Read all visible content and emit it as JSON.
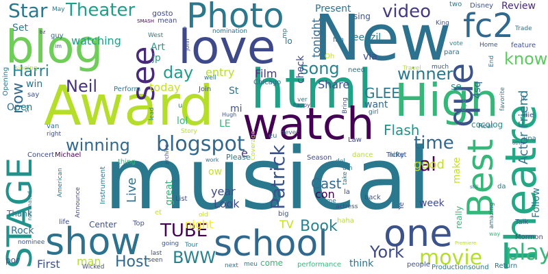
{
  "words": [
    {
      "text": "musical",
      "color": "#2a788e"
    },
    {
      "text": "New",
      "color": "#2c718e"
    },
    {
      "text": "Award",
      "color": "#b5de2b"
    },
    {
      "text": "html",
      "color": "#1fa187"
    },
    {
      "text": "Theatre",
      "color": "#22a884"
    },
    {
      "text": "High",
      "color": "#35b779"
    },
    {
      "text": "love",
      "color": "#3e4989"
    },
    {
      "text": "blog",
      "color": "#6ece58"
    },
    {
      "text": "watch",
      "color": "#440154"
    },
    {
      "text": "school",
      "color": "#31688e"
    },
    {
      "text": "show",
      "color": "#2c728e"
    },
    {
      "text": "Photo",
      "color": "#2a788e"
    },
    {
      "text": "STAGE",
      "color": "#21918c"
    },
    {
      "text": "Best",
      "color": "#35b779"
    },
    {
      "text": "one",
      "color": "#3b528b"
    },
    {
      "text": "que",
      "color": "#3b528b"
    },
    {
      "text": "see",
      "color": "#482878"
    },
    {
      "text": "fc2",
      "color": "#31688e"
    },
    {
      "text": "play",
      "color": "#35b779"
    },
    {
      "text": "blogspot",
      "color": "#31688e"
    },
    {
      "text": "winning",
      "color": "#31688e"
    },
    {
      "text": "Patrick",
      "color": "#3b528b"
    },
    {
      "text": "movie",
      "color": "#b5de2b"
    },
    {
      "text": "Theater",
      "color": "#1f9e89"
    },
    {
      "text": "Star",
      "color": "#2a788e"
    },
    {
      "text": "video",
      "color": "#443983"
    },
    {
      "text": "TUBE",
      "color": "#440154"
    },
    {
      "text": "BWW",
      "color": "#26828e"
    },
    {
      "text": "York",
      "color": "#3e4989"
    },
    {
      "text": "winner",
      "color": "#2a788e"
    },
    {
      "text": "song",
      "color": "#26828e"
    },
    {
      "text": "know",
      "color": "#5ec962"
    },
    {
      "text": "day",
      "color": "#1f9e89"
    },
    {
      "text": "time",
      "color": "#31688e"
    },
    {
      "text": "Neil",
      "color": "#46327e"
    },
    {
      "text": "Host",
      "color": "#31688e"
    },
    {
      "text": "Harri",
      "color": "#26828e"
    },
    {
      "text": "Book",
      "color": "#26828e"
    },
    {
      "text": "Cast",
      "color": "#31688e"
    },
    {
      "text": "now",
      "color": "#31688e"
    },
    {
      "text": "al",
      "color": "#440154"
    },
    {
      "text": "Actor Friend",
      "color": "#2a788e"
    },
    {
      "text": "Flash",
      "color": "#21918c"
    },
    {
      "text": "GLEE",
      "color": "#2a788e"
    },
    {
      "text": "Live",
      "color": "#2c728e"
    },
    {
      "text": "good",
      "color": "#c8e020"
    },
    {
      "text": "First",
      "color": "#3b528b"
    },
    {
      "text": "man",
      "color": "#b5de2b"
    },
    {
      "text": "tonight",
      "color": "#31688e"
    },
    {
      "text": "night",
      "color": "#fde725"
    },
    {
      "text": "watching",
      "color": "#1f9e89"
    },
    {
      "text": "entry",
      "color": "#b5de2b"
    },
    {
      "text": "Film",
      "color": "#443983"
    },
    {
      "text": "Share",
      "color": "#3b528b"
    },
    {
      "text": "year",
      "color": "#3e4989"
    },
    {
      "text": "Look",
      "color": "#3e4989"
    },
    {
      "text": "today",
      "color": "#c8e020"
    },
    {
      "text": "Present",
      "color": "#2c728e"
    },
    {
      "text": "think",
      "color": "#2c728e"
    },
    {
      "text": "lol",
      "color": "#35b779"
    },
    {
      "text": "Open",
      "color": "#2a788e"
    },
    {
      "text": "Art",
      "color": "#1f9e89"
    },
    {
      "text": "jp",
      "color": "#1f9e89"
    },
    {
      "text": "via",
      "color": "#3e4989"
    },
    {
      "text": "4sq",
      "color": "#31688e"
    },
    {
      "text": "Review",
      "color": "#482878"
    },
    {
      "text": "Follow",
      "color": "#2a788e"
    },
    {
      "text": "TV",
      "color": "#c8e020"
    },
    {
      "text": "con",
      "color": "#440154"
    },
    {
      "text": "make",
      "color": "#c8e020"
    },
    {
      "text": "e",
      "color": "#46327e"
    },
    {
      "text": "week",
      "color": "#3e4989"
    },
    {
      "text": "want",
      "color": "#31688e"
    },
    {
      "text": "se",
      "color": "#21918c"
    },
    {
      "text": "LE",
      "color": "#35b779"
    },
    {
      "text": "mi",
      "color": "#3b528b"
    },
    {
      "text": "St",
      "color": "#2c728e"
    },
    {
      "text": "win",
      "color": "#2c728e"
    },
    {
      "text": "really",
      "color": "#35b779"
    },
    {
      "text": "great",
      "color": "#35b779"
    },
    {
      "text": "Set",
      "color": "#2a788e"
    },
    {
      "text": "Rock",
      "color": "#2c728e"
    },
    {
      "text": "Center",
      "color": "#3b528b"
    },
    {
      "text": "come",
      "color": "#35b779"
    },
    {
      "text": "feedzil",
      "color": "#2a788e"
    },
    {
      "text": "sing",
      "color": "#3b528b"
    },
    {
      "text": "Concert",
      "color": "#3e4989"
    },
    {
      "text": "Michael",
      "color": "#440154"
    },
    {
      "text": "Thank",
      "color": "#2a788e"
    },
    {
      "text": "cocolog",
      "color": "#21918c"
    },
    {
      "text": "ow",
      "color": "#c8e020"
    },
    {
      "text": "performance",
      "color": "#35b779"
    },
    {
      "text": "Productionsound",
      "color": "#2a788e"
    },
    {
      "text": "Chicago",
      "color": "#31688e"
    },
    {
      "text": "Join",
      "color": "#3e4989"
    },
    {
      "text": "Perform",
      "color": "#2a788e"
    },
    {
      "text": "Opening",
      "color": "#2c728e"
    },
    {
      "text": "singing",
      "color": "#b5de2b"
    },
    {
      "text": "gosto",
      "color": "#3e4989"
    },
    {
      "text": "mean",
      "color": "#3e4989"
    },
    {
      "text": "SMASH",
      "color": "#440154"
    },
    {
      "text": "West",
      "color": "#2a788e"
    },
    {
      "text": "guy",
      "color": "#31688e"
    },
    {
      "text": "bz",
      "color": "#482878"
    },
    {
      "text": "im",
      "color": "#3e4989"
    },
    {
      "text": "May",
      "color": "#2a788e"
    },
    {
      "text": "nomination",
      "color": "#2c728e"
    },
    {
      "text": "Disney",
      "color": "#3b528b"
    },
    {
      "text": "King",
      "color": "#3b528b"
    },
    {
      "text": "para",
      "color": "#2c728e"
    },
    {
      "text": "two",
      "color": "#2a788e"
    },
    {
      "text": "Trade",
      "color": "#2c728e"
    },
    {
      "text": "feature",
      "color": "#3b528b"
    },
    {
      "text": "Home",
      "color": "#3b528b"
    },
    {
      "text": "vote",
      "color": "#21918c"
    },
    {
      "text": "End",
      "color": "#2c728e"
    },
    {
      "text": "Travel",
      "color": "#b5de2b"
    },
    {
      "text": "much",
      "color": "#3b528b"
    },
    {
      "text": "need",
      "color": "#2c728e"
    },
    {
      "text": "Oh",
      "color": "#c8e020"
    },
    {
      "text": "fan",
      "color": "#2c728e"
    },
    {
      "text": "lo",
      "color": "#2a788e"
    },
    {
      "text": "check",
      "color": "#3e4989"
    },
    {
      "text": "mp",
      "color": "#2c728e"
    },
    {
      "text": "happy",
      "color": "#3e4989"
    },
    {
      "text": "ver",
      "color": "#2a788e"
    },
    {
      "text": "Bring",
      "color": "#3e4989"
    },
    {
      "text": "girl",
      "color": "#31688e"
    },
    {
      "text": "Hugh",
      "color": "#3b528b"
    },
    {
      "text": "eu",
      "color": "#2a788e"
    },
    {
      "text": "never",
      "color": "#31688e"
    },
    {
      "text": "ik",
      "color": "#2c728e"
    },
    {
      "text": "favorite",
      "color": "#2a788e"
    },
    {
      "text": "die",
      "color": "#3e4989"
    },
    {
      "text": "Real",
      "color": "#2c728e"
    },
    {
      "text": "Opera",
      "color": "#35b779"
    },
    {
      "text": "una",
      "color": "#2c728e"
    },
    {
      "text": "other",
      "color": "#3b528b"
    },
    {
      "text": "nifty",
      "color": "#2c728e"
    },
    {
      "text": "Ticket",
      "color": "#3b528b"
    },
    {
      "text": "Season",
      "color": "#3e4989"
    },
    {
      "text": "dance",
      "color": "#b5de2b"
    },
    {
      "text": "Law",
      "color": "#3e4989"
    },
    {
      "text": "del",
      "color": "#2a788e"
    },
    {
      "text": "um",
      "color": "#2a788e"
    },
    {
      "text": "take",
      "color": "#2a788e"
    },
    {
      "text": "la",
      "color": "#3e4989"
    },
    {
      "text": "back",
      "color": "#3b528b"
    },
    {
      "text": "Game",
      "color": "#2a788e"
    },
    {
      "text": "actress",
      "color": "#3e4989"
    },
    {
      "text": "Please",
      "color": "#2c728e"
    },
    {
      "text": "Coverage",
      "color": "#b5de2b"
    },
    {
      "text": "work",
      "color": "#2c728e"
    },
    {
      "text": "Story",
      "color": "#b5de2b"
    },
    {
      "text": "lead",
      "color": "#2a788e"
    },
    {
      "text": "archive",
      "color": "#3b528b"
    },
    {
      "text": "thing",
      "color": "#35b779"
    },
    {
      "text": "American",
      "color": "#2c728e"
    },
    {
      "text": "Instrument",
      "color": "#2a788e"
    },
    {
      "text": "Announce",
      "color": "#3e4989"
    },
    {
      "text": "List",
      "color": "#3e4989"
    },
    {
      "text": "nominated",
      "color": "#2a788e"
    },
    {
      "text": "nominee",
      "color": "#3b528b"
    },
    {
      "text": "life",
      "color": "#3e4989"
    },
    {
      "text": "por",
      "color": "#3b528b"
    },
    {
      "text": "seen",
      "color": "#3e4989"
    },
    {
      "text": "Wicked",
      "color": "#3e4989"
    },
    {
      "text": "Top",
      "color": "#3b528b"
    },
    {
      "text": "going",
      "color": "#3b528b"
    },
    {
      "text": "Tour",
      "color": "#2a788e"
    },
    {
      "text": "last",
      "color": "#3e4989"
    },
    {
      "text": "next",
      "color": "#2c728e"
    },
    {
      "text": "meu",
      "color": "#2a788e"
    },
    {
      "text": "haha",
      "color": "#b5de2b"
    },
    {
      "text": "people",
      "color": "#3b528b"
    },
    {
      "text": "Return",
      "color": "#2c728e"
    },
    {
      "text": "Talk",
      "color": "#3b528b"
    },
    {
      "text": "Mormon",
      "color": "#3e4989"
    },
    {
      "text": "Premiere",
      "color": "#b5de2b"
    },
    {
      "text": "way",
      "color": "#35b779"
    },
    {
      "text": "amazing",
      "color": "#2c728e"
    },
    {
      "text": "Ye",
      "color": "#3e4989"
    },
    {
      "text": "still",
      "color": "#2c728e"
    },
    {
      "text": "da",
      "color": "#2a788e"
    },
    {
      "text": "old",
      "color": "#c8e020"
    },
    {
      "text": "big",
      "color": "#3b528b"
    },
    {
      "text": "et",
      "color": "#c8e020"
    },
    {
      "text": "van",
      "color": "#2c728e"
    },
    {
      "text": "right",
      "color": "#3e4989"
    },
    {
      "text": "su",
      "color": "#2a788e"
    },
    {
      "text": "say",
      "color": "#3b528b"
    },
    {
      "text": "co",
      "color": "#3b528b"
    },
    {
      "text": "John",
      "color": "#3e4989"
    },
    {
      "text": "well",
      "color": "#2c728e"
    },
    {
      "text": "u",
      "color": "#2a788e"
    }
  ]
}
